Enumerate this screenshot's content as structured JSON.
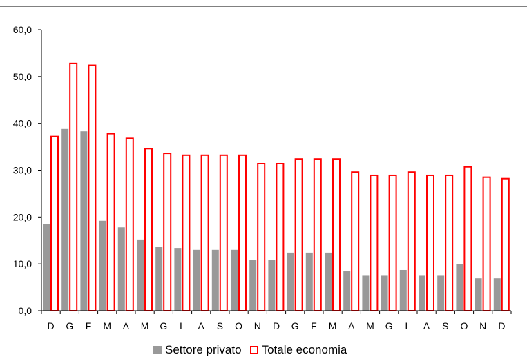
{
  "chart_data": {
    "type": "bar",
    "categories": [
      "D",
      "G",
      "F",
      "M",
      "A",
      "M",
      "G",
      "L",
      "A",
      "S",
      "O",
      "N",
      "D",
      "G",
      "F",
      "M",
      "A",
      "M",
      "G",
      "L",
      "A",
      "S",
      "O",
      "N",
      "D"
    ],
    "series": [
      {
        "name": "Settore privato",
        "color": "#999999",
        "values": [
          18.5,
          38.8,
          38.3,
          19.2,
          17.8,
          15.2,
          13.7,
          13.4,
          13.0,
          13.0,
          13.0,
          10.9,
          10.9,
          12.4,
          12.4,
          12.4,
          8.4,
          7.6,
          7.6,
          8.7,
          7.6,
          7.6,
          9.9,
          6.9,
          6.9
        ]
      },
      {
        "name": "Totale economia",
        "color": "#ff0000",
        "values": [
          37.2,
          52.8,
          52.4,
          37.8,
          36.8,
          34.6,
          33.6,
          33.2,
          33.2,
          33.2,
          33.2,
          31.4,
          31.4,
          32.4,
          32.4,
          32.4,
          29.6,
          28.9,
          28.9,
          29.6,
          28.9,
          28.9,
          30.7,
          28.5,
          28.2
        ]
      }
    ],
    "yticks": [
      "0,0",
      "10,0",
      "20,0",
      "30,0",
      "40,0",
      "50,0",
      "60,0"
    ],
    "ylim": [
      0,
      60
    ],
    "grid": false,
    "legend_position": "bottom"
  }
}
